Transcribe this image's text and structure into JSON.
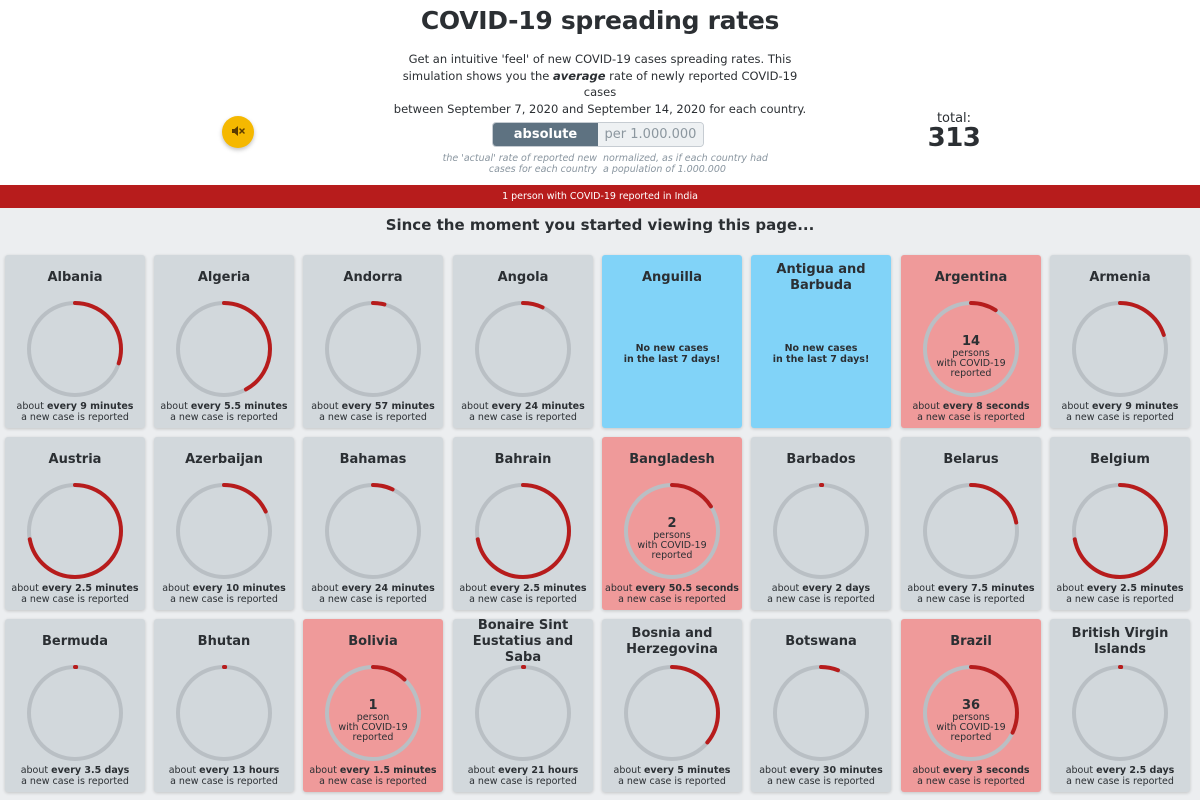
{
  "header": {
    "title": "COVID-19 spreading rates",
    "intro_line1": "Get an intuitive 'feel' of new COVID-19 cases spreading rates. This",
    "intro_line2_pre": "simulation shows you the ",
    "intro_line2_em": "average",
    "intro_line2_post": " rate of newly reported COVID-19 cases",
    "intro_line3": "between September 7, 2020 and September 14, 2020 for each country.",
    "mute_icon": "speaker-muted-icon",
    "toggle_absolute": "absolute",
    "toggle_per_million": "per 1.000.000",
    "note_absolute": "the 'actual' rate of reported new cases for each country",
    "note_per_million": "normalized, as if each country had a population of 1.000.000",
    "total_label": "total:",
    "total_value": "313"
  },
  "banner": {
    "text": "1 person with COVID-19 reported in India"
  },
  "section_heading": "Since the moment you started viewing this page...",
  "colors": {
    "accent": "#b71c1c",
    "card": "#d2d8dc",
    "card_no_cases": "#81d3f8",
    "card_active": "#ef9a9a",
    "ring_track": "#b9bfc4",
    "mute_button": "#f5b800"
  },
  "cards": [
    {
      "name": "Albania",
      "progress": 0.3,
      "state": "normal",
      "interval_pre": "about ",
      "interval": "every 9 minutes",
      "footer2": "a new case is reported"
    },
    {
      "name": "Algeria",
      "progress": 0.42,
      "state": "normal",
      "interval_pre": "about ",
      "interval": "every 5.5 minutes",
      "footer2": "a new case is reported"
    },
    {
      "name": "Andorra",
      "progress": 0.04,
      "state": "normal",
      "interval_pre": "about ",
      "interval": "every 57 minutes",
      "footer2": "a new case is reported"
    },
    {
      "name": "Angola",
      "progress": 0.07,
      "state": "normal",
      "interval_pre": "about ",
      "interval": "every 24 minutes",
      "footer2": "a new case is reported"
    },
    {
      "name": "Anguilla",
      "state": "no-cases",
      "nocase_line1": "No new cases",
      "nocase_line2": "in the last 7 days!"
    },
    {
      "name": "Antigua and Barbuda",
      "state": "no-cases",
      "nocase_line1": "No new cases",
      "nocase_line2": "in the last 7 days!"
    },
    {
      "name": "Argentina",
      "progress": 0.09,
      "state": "active",
      "count": "14",
      "count_unit": "persons",
      "count_line2": "with COVID-19",
      "count_line3": "reported",
      "interval_pre": "about ",
      "interval": "every 8 seconds",
      "footer2": "a new case is reported"
    },
    {
      "name": "Armenia",
      "progress": 0.2,
      "state": "normal",
      "interval_pre": "about ",
      "interval": "every 9 minutes",
      "footer2": "a new case is reported"
    },
    {
      "name": "Austria",
      "progress": 0.72,
      "state": "normal",
      "interval_pre": "about ",
      "interval": "every 2.5 minutes",
      "footer2": "a new case is reported"
    },
    {
      "name": "Azerbaijan",
      "progress": 0.18,
      "state": "normal",
      "interval_pre": "about ",
      "interval": "every 10 minutes",
      "footer2": "a new case is reported"
    },
    {
      "name": "Bahamas",
      "progress": 0.07,
      "state": "normal",
      "interval_pre": "about ",
      "interval": "every 24 minutes",
      "footer2": "a new case is reported"
    },
    {
      "name": "Bahrain",
      "progress": 0.72,
      "state": "normal",
      "interval_pre": "about ",
      "interval": "every 2.5 minutes",
      "footer2": "a new case is reported"
    },
    {
      "name": "Bangladesh",
      "progress": 0.16,
      "state": "active",
      "count": "2",
      "count_unit": "persons",
      "count_line2": "with COVID-19",
      "count_line3": "reported",
      "interval_pre": "about ",
      "interval": "every 50.5 seconds",
      "footer2": "a new case is reported"
    },
    {
      "name": "Barbados",
      "progress": 0.0,
      "state": "normal",
      "interval_pre": "about ",
      "interval": "every 2 days",
      "footer2": "a new case is reported"
    },
    {
      "name": "Belarus",
      "progress": 0.22,
      "state": "normal",
      "interval_pre": "about ",
      "interval": "every 7.5 minutes",
      "footer2": "a new case is reported"
    },
    {
      "name": "Belgium",
      "progress": 0.72,
      "state": "normal",
      "interval_pre": "about ",
      "interval": "every 2.5 minutes",
      "footer2": "a new case is reported"
    },
    {
      "name": "Bermuda",
      "progress": 0.0,
      "state": "normal",
      "interval_pre": "about ",
      "interval": "every 3.5 days",
      "footer2": "a new case is reported"
    },
    {
      "name": "Bhutan",
      "progress": 0.0,
      "state": "normal",
      "interval_pre": "about ",
      "interval": "every 13 hours",
      "footer2": "a new case is reported"
    },
    {
      "name": "Bolivia",
      "progress": 0.12,
      "state": "active",
      "count": "1",
      "count_unit": "person",
      "count_line2": "with COVID-19",
      "count_line3": "reported",
      "interval_pre": "about ",
      "interval": "every 1.5 minutes",
      "footer2": "a new case is reported"
    },
    {
      "name": "Bonaire Sint Eustatius and Saba",
      "progress": 0.0,
      "state": "normal",
      "interval_pre": "about ",
      "interval": "every 21 hours",
      "footer2": "a new case is reported"
    },
    {
      "name": "Bosnia and Herzegovina",
      "progress": 0.36,
      "state": "normal",
      "interval_pre": "about ",
      "interval": "every 5 minutes",
      "footer2": "a new case is reported"
    },
    {
      "name": "Botswana",
      "progress": 0.06,
      "state": "normal",
      "interval_pre": "about ",
      "interval": "every 30 minutes",
      "footer2": "a new case is reported"
    },
    {
      "name": "Brazil",
      "progress": 0.32,
      "state": "active",
      "count": "36",
      "count_unit": "persons",
      "count_line2": "with COVID-19",
      "count_line3": "reported",
      "interval_pre": "about ",
      "interval": "every 3 seconds",
      "footer2": "a new case is reported"
    },
    {
      "name": "British Virgin Islands",
      "progress": 0.0,
      "state": "normal",
      "interval_pre": "about ",
      "interval": "every 2.5 days",
      "footer2": "a new case is reported"
    }
  ]
}
